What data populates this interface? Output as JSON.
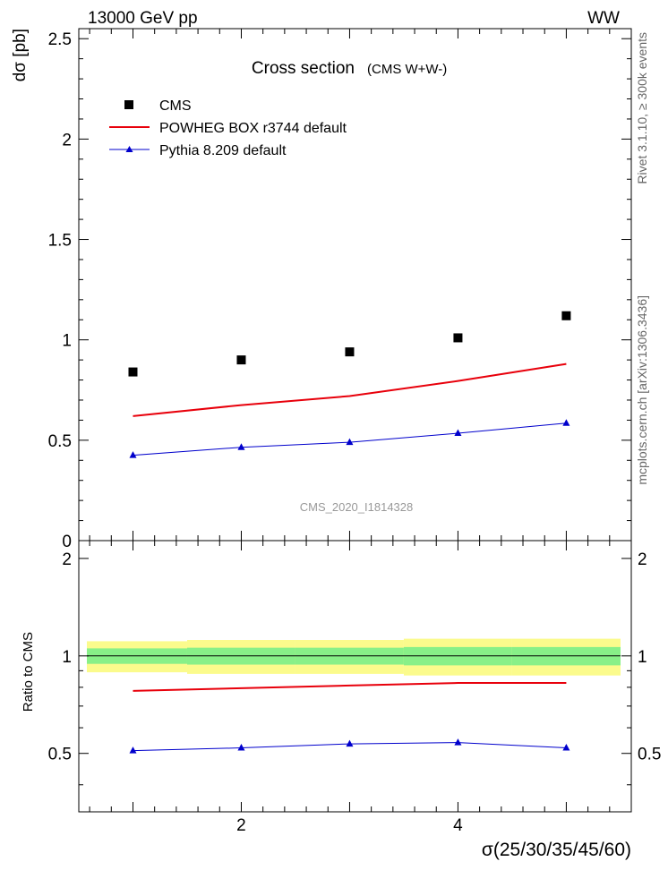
{
  "header": {
    "left_label": "13000 GeV pp",
    "right_label": "WW"
  },
  "side_labels": {
    "rivet": "Rivet 3.1.10, ≥ 300k events",
    "mcplots": "mcplots.cern.ch [arXiv:1306.3436]"
  },
  "watermark": "CMS_2020_I1814328",
  "colors": {
    "cms": "#000000",
    "powheg": "#e8000b",
    "pythia": "#0000cc",
    "band_inner": "#88f088",
    "band_outer": "#fbfb8c"
  },
  "chart_data": [
    {
      "type": "scatter",
      "panel": "main",
      "title": "Cross section",
      "subtitle": "(CMS W+W-)",
      "ylabel": "dσ [pb]",
      "xlim": [
        0.5,
        5.6
      ],
      "ylim": [
        0,
        2.55
      ],
      "yticks": [
        0,
        0.5,
        1,
        1.5,
        2,
        2.5
      ],
      "ytick_labels": [
        "0",
        "0.5",
        "1",
        "1.5",
        "2",
        "2.5"
      ],
      "legend_position": "top-left",
      "series": [
        {
          "name": "CMS",
          "style": "markers",
          "x": [
            1,
            2,
            3,
            4,
            5
          ],
          "y": [
            0.84,
            0.9,
            0.94,
            1.01,
            1.12
          ]
        },
        {
          "name": "POWHEG BOX r3744 default",
          "style": "line",
          "x": [
            1,
            2,
            3,
            4,
            5
          ],
          "y": [
            0.62,
            0.675,
            0.72,
            0.795,
            0.88
          ]
        },
        {
          "name": "Pythia 8.209 default",
          "style": "line-triangles",
          "x": [
            1,
            2,
            3,
            4,
            5
          ],
          "y": [
            0.425,
            0.465,
            0.49,
            0.535,
            0.585
          ]
        }
      ]
    },
    {
      "type": "line",
      "panel": "ratio",
      "ylabel": "Ratio to CMS",
      "xlabel": "σ(25/30/35/45/60)",
      "xlim": [
        0.5,
        5.6
      ],
      "ylim": [
        0.33,
        2.27
      ],
      "yticks": [
        0.5,
        1,
        2
      ],
      "ytick_labels": [
        "0.5",
        "1",
        "2"
      ],
      "xticks": [
        2,
        4
      ],
      "xtick_labels": [
        "2",
        "4"
      ],
      "band_edges": [
        0.5,
        1.5,
        2.5,
        3.5,
        4.5,
        5.6
      ],
      "band_inner": [
        [
          0.945,
          1.055
        ],
        [
          0.94,
          1.06
        ],
        [
          0.94,
          1.06
        ],
        [
          0.935,
          1.065
        ],
        [
          0.935,
          1.065
        ]
      ],
      "band_outer": [
        [
          0.89,
          1.11
        ],
        [
          0.88,
          1.12
        ],
        [
          0.88,
          1.12
        ],
        [
          0.87,
          1.13
        ],
        [
          0.87,
          1.13
        ]
      ],
      "series": [
        {
          "name": "POWHEG BOX r3744 default",
          "style": "line",
          "x": [
            1,
            2,
            3,
            4,
            5
          ],
          "y": [
            0.78,
            0.795,
            0.81,
            0.825,
            0.825
          ]
        },
        {
          "name": "Pythia 8.209 default",
          "style": "line-triangles",
          "x": [
            1,
            2,
            3,
            4,
            5
          ],
          "y": [
            0.51,
            0.52,
            0.535,
            0.54,
            0.52
          ]
        }
      ]
    }
  ]
}
